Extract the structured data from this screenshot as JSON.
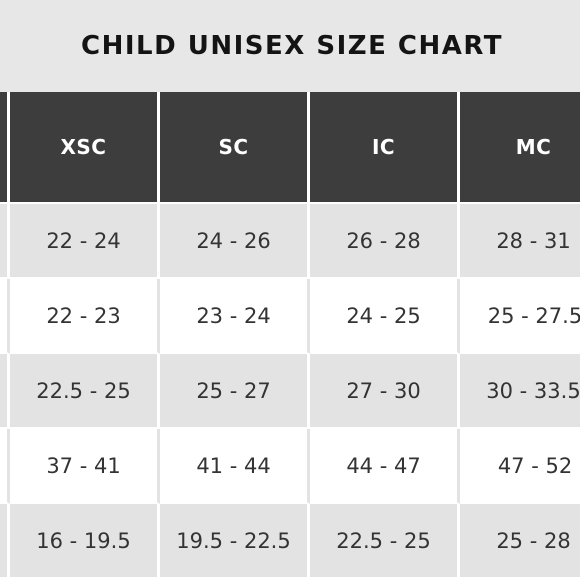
{
  "title": "CHILD UNISEX SIZE CHART",
  "columns": [
    "",
    "XSC",
    "SC",
    "IC",
    "MC"
  ],
  "rows": [
    {
      "label": "",
      "values": [
        "22 - 24",
        "24 - 26",
        "26 - 28",
        "28 - 31"
      ]
    },
    {
      "label": "",
      "values": [
        "22 - 23",
        "23 - 24",
        "24 - 25",
        "25 - 27.5"
      ]
    },
    {
      "label": "",
      "values": [
        "22.5 - 25",
        "25 - 27",
        "27 - 30",
        "30 - 33.5"
      ]
    },
    {
      "label": "",
      "values": [
        "37 - 41",
        "41 - 44",
        "44 - 47",
        "47 - 52"
      ]
    },
    {
      "label": "",
      "values": [
        "16 - 19.5",
        "19.5 - 22.5",
        "22.5 - 25",
        "25 - 28"
      ]
    }
  ],
  "colors": {
    "title_bg": "#e7e7e7",
    "header_bg": "#3d3d3d",
    "row_alt_bg": "#e3e3e3",
    "row_bg": "#ffffff"
  }
}
